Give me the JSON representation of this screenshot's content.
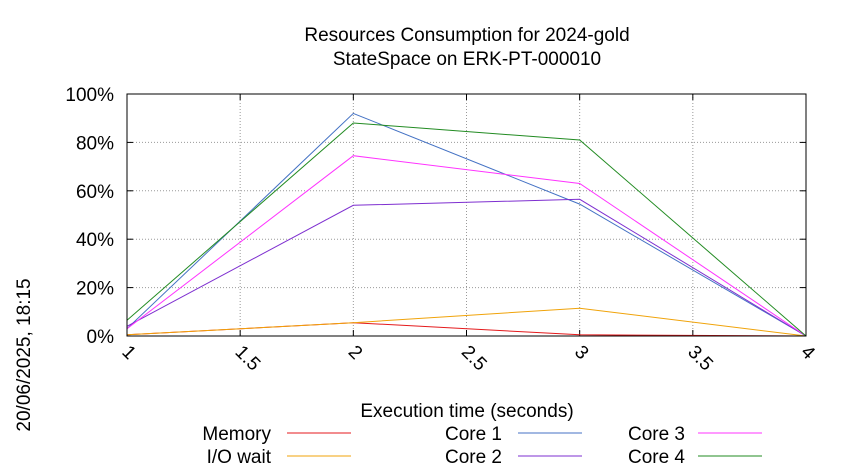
{
  "chart_data": {
    "type": "line",
    "title": [
      "Resources Consumption for 2024-gold",
      "StateSpace on ERK-PT-000010"
    ],
    "xlabel": "Execution time (seconds)",
    "ylabel": "",
    "side_label": "20/06/2025, 18:15",
    "xlim": [
      1,
      4
    ],
    "ylim": [
      0,
      100
    ],
    "x_ticks": [
      1,
      1.5,
      2,
      2.5,
      3,
      3.5,
      4
    ],
    "x_tick_labels": [
      "1",
      "1.5",
      "2",
      "2.5",
      "3",
      "3.5",
      "4"
    ],
    "y_ticks": [
      0,
      20,
      40,
      60,
      80,
      100
    ],
    "y_tick_labels": [
      "0%",
      "20%",
      "40%",
      "60%",
      "80%",
      "100%"
    ],
    "grid": true,
    "legend_position": "bottom",
    "series": [
      {
        "name": "Memory",
        "color": "#e41a1c",
        "x": [
          1,
          2,
          3,
          4
        ],
        "y": [
          0.5,
          5.5,
          0.5,
          0
        ]
      },
      {
        "name": "I/O wait",
        "color": "#f0a30a",
        "x": [
          1,
          2,
          3,
          4
        ],
        "y": [
          0.5,
          5.5,
          11.5,
          0
        ]
      },
      {
        "name": "Core 1",
        "color": "#4472c4",
        "x": [
          1,
          2,
          3,
          4
        ],
        "y": [
          3,
          92,
          54.5,
          0
        ]
      },
      {
        "name": "Core 2",
        "color": "#7e2fd0",
        "x": [
          1,
          2,
          3,
          4
        ],
        "y": [
          4,
          54,
          56.5,
          0
        ]
      },
      {
        "name": "Core 3",
        "color": "#ff33ff",
        "x": [
          1,
          2,
          3,
          4
        ],
        "y": [
          3,
          74.5,
          63,
          0
        ]
      },
      {
        "name": "Core 4",
        "color": "#228b22",
        "x": [
          1,
          2,
          3,
          4
        ],
        "y": [
          6.5,
          88,
          81,
          0
        ]
      }
    ]
  }
}
